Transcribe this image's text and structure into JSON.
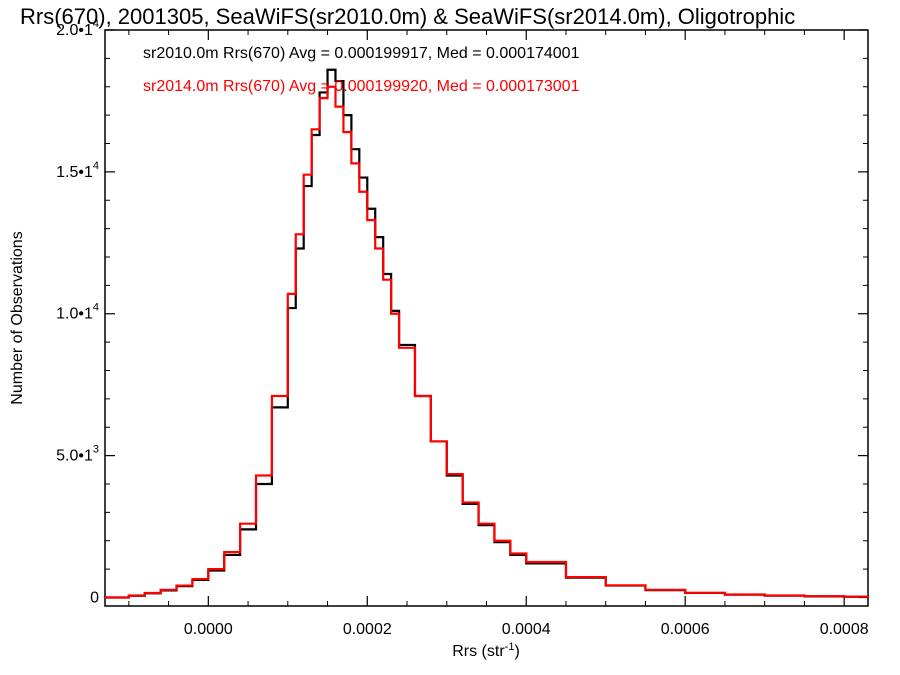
{
  "chart_data": {
    "type": "line",
    "title": "Rrs(670), 2001305, SeaWiFS(sr2010.0m) & SeaWiFS(sr2014.0m), Oligotrophic",
    "xlabel": {
      "base": "Rrs (str",
      "sup": "-1",
      "tail": ")"
    },
    "ylabel": "Number of Observations",
    "xlim": [
      -0.00013,
      0.00083
    ],
    "ylim": [
      -300,
      20000
    ],
    "x_ticks": [
      {
        "value": 0.0,
        "label": "0.0000"
      },
      {
        "value": 0.0002,
        "label": "0.0002"
      },
      {
        "value": 0.0004,
        "label": "0.0004"
      },
      {
        "value": 0.0006,
        "label": "0.0006"
      },
      {
        "value": 0.0008,
        "label": "0.0008"
      }
    ],
    "y_ticks": [
      {
        "value": 0,
        "mantissa": "0",
        "exp": ""
      },
      {
        "value": 5000,
        "mantissa": "5.0•1",
        "exp": "3"
      },
      {
        "value": 10000,
        "mantissa": "1.0•1",
        "exp": "4"
      },
      {
        "value": 15000,
        "mantissa": "1.5•1",
        "exp": "4"
      },
      {
        "value": 20000,
        "mantissa": "2.0•1",
        "exp": "4"
      }
    ],
    "series": [
      {
        "name": "sr2010.0m",
        "color": "#000000",
        "legend_text": "sr2010.0m Rrs(670) Avg = 0.000199917, Med = 0.000174001",
        "x": [
          -0.00013,
          -0.0001,
          -8e-05,
          -6e-05,
          -4e-05,
          -2e-05,
          0.0,
          2e-05,
          4e-05,
          6e-05,
          8e-05,
          0.0001,
          0.00011,
          0.00012,
          0.00013,
          0.00014,
          0.00015,
          0.00016,
          0.00017,
          0.00018,
          0.00019,
          0.0002,
          0.00021,
          0.00022,
          0.00023,
          0.00024,
          0.00026,
          0.00028,
          0.0003,
          0.00032,
          0.00034,
          0.00036,
          0.00038,
          0.0004,
          0.00045,
          0.0005,
          0.00055,
          0.0006,
          0.00065,
          0.0007,
          0.00075,
          0.0008,
          0.00083
        ],
        "y": [
          0,
          60,
          150,
          250,
          400,
          620,
          950,
          1500,
          2400,
          4000,
          6700,
          10200,
          12300,
          14500,
          16300,
          17800,
          18600,
          18200,
          17000,
          15800,
          14800,
          13700,
          12700,
          11400,
          10100,
          8900,
          7100,
          5500,
          4300,
          3300,
          2550,
          1950,
          1500,
          1200,
          700,
          420,
          260,
          160,
          100,
          65,
          40,
          25,
          15
        ]
      },
      {
        "name": "sr2014.0m",
        "color": "#ff0000",
        "legend_text": "sr2014.0m Rrs(670) Avg = 0.000199920, Med = 0.000173001",
        "x": [
          -0.00013,
          -0.0001,
          -8e-05,
          -6e-05,
          -4e-05,
          -2e-05,
          0.0,
          2e-05,
          4e-05,
          6e-05,
          8e-05,
          0.0001,
          0.00011,
          0.00012,
          0.00013,
          0.00014,
          0.00015,
          0.00016,
          0.00017,
          0.00018,
          0.00019,
          0.0002,
          0.00021,
          0.00022,
          0.00023,
          0.00024,
          0.00026,
          0.00028,
          0.0003,
          0.00032,
          0.00034,
          0.00036,
          0.00038,
          0.0004,
          0.00045,
          0.0005,
          0.00055,
          0.0006,
          0.00065,
          0.0007,
          0.00075,
          0.0008,
          0.00083
        ],
        "y": [
          0,
          70,
          160,
          270,
          420,
          650,
          1000,
          1600,
          2600,
          4300,
          7100,
          10700,
          12800,
          14900,
          16500,
          17600,
          18000,
          17300,
          16400,
          15300,
          14300,
          13300,
          12300,
          11200,
          10000,
          8800,
          7100,
          5500,
          4350,
          3350,
          2600,
          2000,
          1550,
          1250,
          720,
          430,
          270,
          165,
          105,
          70,
          45,
          28,
          15
        ]
      }
    ],
    "grid": false,
    "legend_placement": "top-left"
  }
}
